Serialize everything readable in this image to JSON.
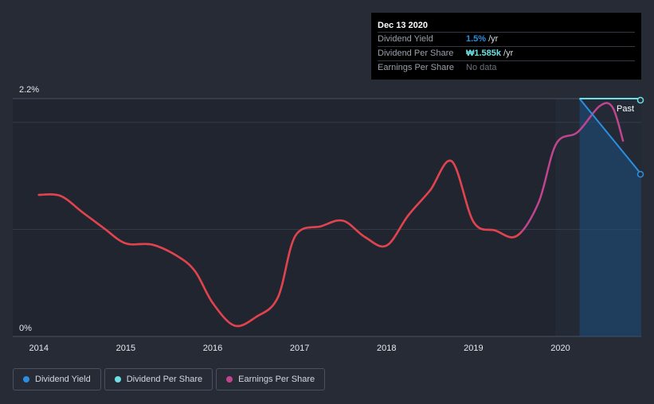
{
  "tooltip": {
    "date": "Dec 13 2020",
    "rows": [
      {
        "label": "Dividend Yield",
        "value": "1.5%",
        "unit": "/yr"
      },
      {
        "label": "Dividend Per Share",
        "value": "₩1.585k",
        "unit": "/yr"
      },
      {
        "label": "Earnings Per Share",
        "value": "No data",
        "unit": ""
      }
    ]
  },
  "legend": [
    {
      "label": "Dividend Yield",
      "color": "#2a8fe0"
    },
    {
      "label": "Dividend Per Share",
      "color": "#6ee0e4"
    },
    {
      "label": "Earnings Per Share",
      "color": "#c0458f"
    }
  ],
  "colors": {
    "dividend_yield": "#2a8fe0",
    "dividend_per_share": "#6ee0e4",
    "earnings_per_share": "#c0458f",
    "yield_fill": "#1d4e80",
    "past_bg": "#202530",
    "page_bg": "#262b36"
  },
  "chart_data": {
    "type": "line",
    "x_ticks": [
      2014,
      2015,
      2016,
      2017,
      2018,
      2019,
      2020
    ],
    "y_ticks": [
      {
        "value": 0,
        "label": "0%"
      },
      {
        "value": 2.2,
        "label": "2.2%"
      }
    ],
    "ylim": [
      0,
      2.2
    ],
    "xlim": [
      2013.7,
      2020.93
    ],
    "past_label": "Past",
    "past_start": 2020.22,
    "forecast_region_start": 2019.94,
    "series": [
      {
        "name": "Earnings Per Share",
        "key": "earnings_per_share",
        "x": [
          2014.0,
          2014.25,
          2014.5,
          2014.75,
          2015.0,
          2015.3,
          2015.6,
          2015.8,
          2016.0,
          2016.25,
          2016.5,
          2016.75,
          2016.95,
          2017.25,
          2017.5,
          2017.75,
          2018.0,
          2018.25,
          2018.5,
          2018.75,
          2019.0,
          2019.25,
          2019.5,
          2019.75,
          2019.95,
          2020.2,
          2020.45,
          2020.6,
          2020.72
        ],
        "y": [
          1.31,
          1.3,
          1.15,
          1.0,
          0.86,
          0.85,
          0.74,
          0.6,
          0.31,
          0.1,
          0.18,
          0.36,
          0.93,
          1.02,
          1.07,
          0.92,
          0.84,
          1.12,
          1.35,
          1.62,
          1.06,
          0.98,
          0.93,
          1.24,
          1.78,
          1.89,
          2.13,
          2.12,
          1.81
        ]
      },
      {
        "name": "Dividend Yield",
        "key": "dividend_yield",
        "x": [
          2020.22,
          2020.93
        ],
        "y": [
          2.2,
          1.5
        ]
      },
      {
        "name": "Dividend Per Share",
        "key": "dividend_per_share",
        "x": [
          2020.22,
          2020.93
        ],
        "y": [
          2.2,
          2.2
        ]
      }
    ]
  }
}
